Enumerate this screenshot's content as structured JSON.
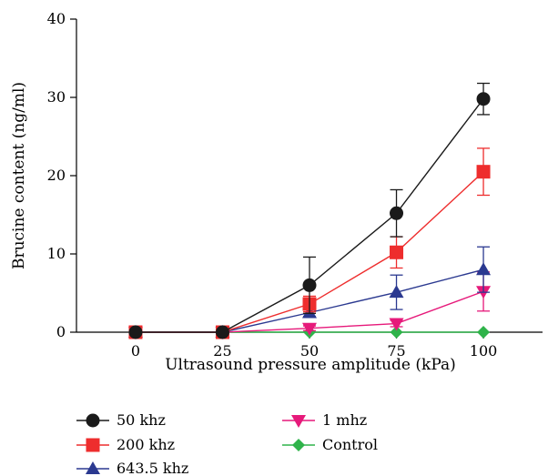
{
  "chart_data": {
    "type": "line",
    "title": "",
    "xlabel": "Ultrasound pressure amplitude (kPa)",
    "ylabel": "Brucine content (ng/ml)",
    "x": [
      0,
      25,
      50,
      75,
      100
    ],
    "x_tick_labels": [
      "0",
      "25",
      "50",
      "75",
      "100"
    ],
    "y_ticks": [
      0,
      10,
      20,
      30,
      40
    ],
    "y_tick_labels": [
      "0",
      "10",
      "20",
      "30",
      "40"
    ],
    "xlim": [
      -17,
      117
    ],
    "ylim": [
      0,
      40
    ],
    "grid": false,
    "legend_position": "bottom",
    "series": [
      {
        "name": "50 khz",
        "color": "#1a1a1a",
        "marker": "circle",
        "values": [
          0,
          0,
          6.0,
          15.2,
          29.8
        ],
        "errors": [
          0,
          0,
          3.6,
          3.0,
          2.0
        ]
      },
      {
        "name": "200 khz",
        "color": "#ee2d2d",
        "marker": "square",
        "values": [
          0,
          0,
          3.6,
          10.2,
          20.5
        ],
        "errors": [
          0,
          0,
          1.0,
          2.0,
          3.0
        ]
      },
      {
        "name": "643.5 khz",
        "color": "#2b3990",
        "marker": "triangle-up",
        "values": [
          0,
          0,
          2.5,
          5.1,
          8.0
        ],
        "errors": [
          0,
          0,
          0.5,
          2.2,
          2.9
        ]
      },
      {
        "name": "1 mhz",
        "color": "#e6197a",
        "marker": "triangle-down",
        "values": [
          0,
          0,
          0.5,
          1.1,
          5.2
        ],
        "errors": [
          0,
          0,
          0.3,
          0.4,
          2.5
        ]
      },
      {
        "name": "Control",
        "color": "#2fb34a",
        "marker": "diamond",
        "values": [
          0,
          0,
          0,
          0,
          0
        ],
        "errors": [
          0,
          0,
          0,
          0,
          0
        ]
      }
    ]
  }
}
